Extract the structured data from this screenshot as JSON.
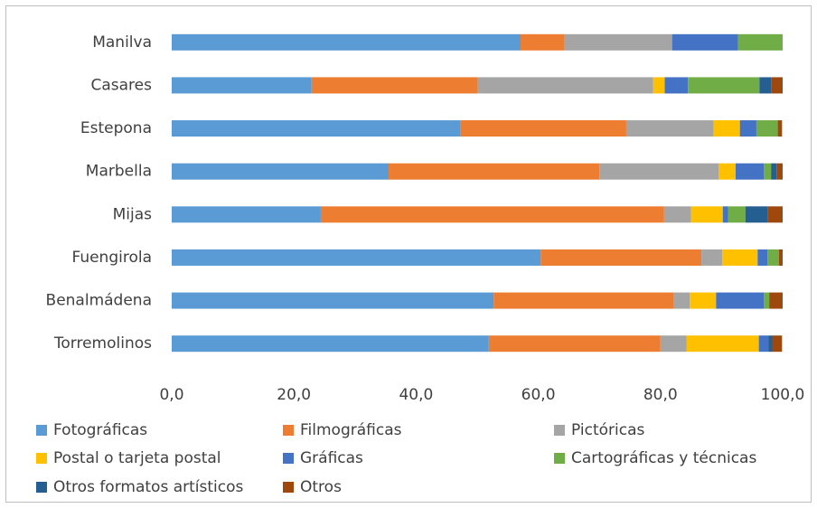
{
  "chart_data": {
    "type": "stacked-bar-horizontal",
    "categories": [
      "Manilva",
      "Casares",
      "Estepona",
      "Marbella",
      "Mijas",
      "Fuengirola",
      "Benalmádena",
      "Torremolinos"
    ],
    "series": [
      {
        "name": "Fotográficas",
        "color": "#5b9bd5",
        "values": [
          57.1,
          22.9,
          47.2,
          35.5,
          24.4,
          60.4,
          52.7,
          51.9
        ]
      },
      {
        "name": "Filmográficas",
        "color": "#ed7d31",
        "values": [
          7.2,
          27.2,
          27.2,
          34.5,
          56.2,
          26.3,
          29.4,
          28.1
        ]
      },
      {
        "name": "Pictóricas",
        "color": "#a5a5a5",
        "values": [
          17.6,
          28.7,
          14.3,
          19.5,
          4.4,
          3.4,
          2.7,
          4.3
        ]
      },
      {
        "name": "Postal o tarjeta postal",
        "color": "#ffc000",
        "values": [
          0,
          1.9,
          4.3,
          2.8,
          5.2,
          5.8,
          4.3,
          11.8
        ]
      },
      {
        "name": "Gráficas",
        "color": "#4472c4",
        "values": [
          10.8,
          3.8,
          2.7,
          4.6,
          0.9,
          1.6,
          7.8,
          1.6
        ]
      },
      {
        "name": "Cartográficas y técnicas",
        "color": "#70ad47",
        "values": [
          7.3,
          11.7,
          3.5,
          1.2,
          2.8,
          1.9,
          0.9,
          0
        ]
      },
      {
        "name": "Otros formatos artísticos",
        "color": "#255e91",
        "values": [
          0,
          1.9,
          0,
          0.9,
          3.6,
          0,
          0,
          0.6
        ]
      },
      {
        "name": "Otros",
        "color": "#9e480e",
        "values": [
          0,
          1.9,
          0.7,
          1.0,
          2.5,
          0.6,
          2.2,
          1.6
        ]
      }
    ],
    "xlim": [
      0,
      100
    ],
    "xticks": [
      {
        "value": 0,
        "label": "0,0"
      },
      {
        "value": 20,
        "label": "20,0"
      },
      {
        "value": 40,
        "label": "40,0"
      },
      {
        "value": 60,
        "label": "60,0"
      },
      {
        "value": 80,
        "label": "80,0"
      },
      {
        "value": 100,
        "label": "100,0"
      }
    ],
    "grid": false
  }
}
